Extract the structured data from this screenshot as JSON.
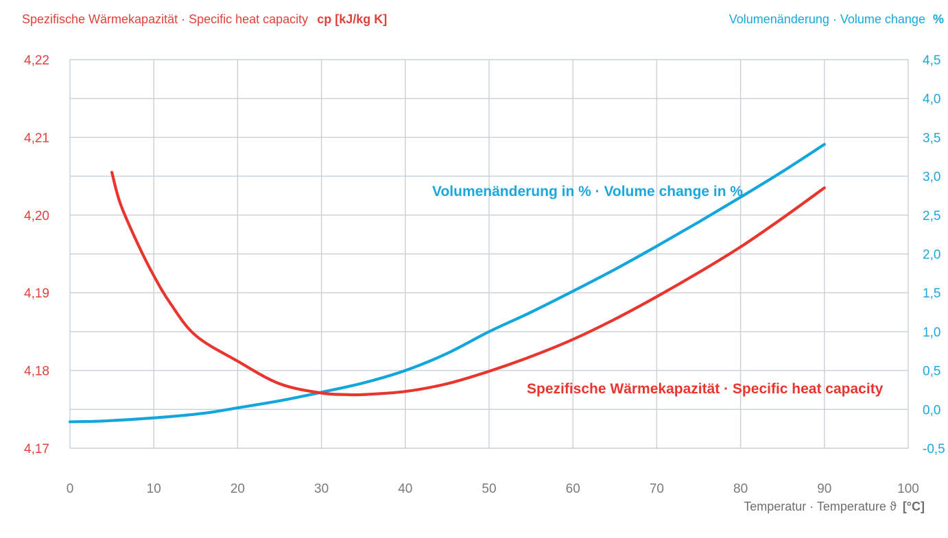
{
  "chart_data": {
    "type": "line",
    "title_left_text": "Spezifische Wärmekapazität · Specific heat capacity",
    "title_left_unit": "cp [kJ/kg K]",
    "title_right_text": "Volumenänderung · Volume change",
    "title_right_unit": "%",
    "xlabel_text": "Temperatur · Temperature ϑ",
    "xlabel_unit": "[°C]",
    "xlim": [
      0,
      100
    ],
    "x_ticks": [
      "0",
      "10",
      "20",
      "30",
      "40",
      "50",
      "60",
      "70",
      "80",
      "90",
      "100"
    ],
    "ylim_left": [
      4.17,
      4.22
    ],
    "y_left_ticks": [
      "4,22",
      "4,21",
      "4,20",
      "4,19",
      "4,18",
      "4,17"
    ],
    "ylim_right": [
      -0.5,
      4.5
    ],
    "y_right_ticks": [
      "4,5",
      "4,0",
      "3,5",
      "3,0",
      "2,5",
      "2,0",
      "1,5",
      "1,0",
      "0,5",
      "0,0",
      "-0,5"
    ],
    "grid": true,
    "colors": {
      "cp": "#e8362f",
      "volume": "#12a6dc",
      "grid": "#c8cfd6"
    },
    "series": [
      {
        "name": "Spezifische Wärmekapazität · Specific heat capacity",
        "axis": "left",
        "x": [
          5,
          6,
          8,
          10,
          12,
          15,
          20,
          25,
          30,
          33,
          35,
          40,
          45,
          50,
          55,
          60,
          65,
          70,
          75,
          80,
          85,
          90
        ],
        "values": [
          4.2055,
          4.2015,
          4.1965,
          4.1922,
          4.1886,
          4.1845,
          4.1812,
          4.1783,
          4.1771,
          4.1769,
          4.1769,
          4.1773,
          4.1783,
          4.1799,
          4.1818,
          4.184,
          4.1866,
          4.1895,
          4.1926,
          4.1959,
          4.1996,
          4.2035
        ]
      },
      {
        "name": "Volumenänderung in % · Volume change in %",
        "axis": "right",
        "x": [
          0,
          4,
          10,
          16,
          20,
          25,
          30,
          35,
          40,
          45,
          50,
          55,
          60,
          65,
          70,
          75,
          80,
          85,
          90
        ],
        "values": [
          -0.16,
          -0.15,
          -0.11,
          -0.05,
          0.02,
          0.11,
          0.22,
          0.34,
          0.5,
          0.72,
          1.0,
          1.25,
          1.52,
          1.8,
          2.1,
          2.41,
          2.73,
          3.06,
          3.41
        ]
      }
    ]
  }
}
